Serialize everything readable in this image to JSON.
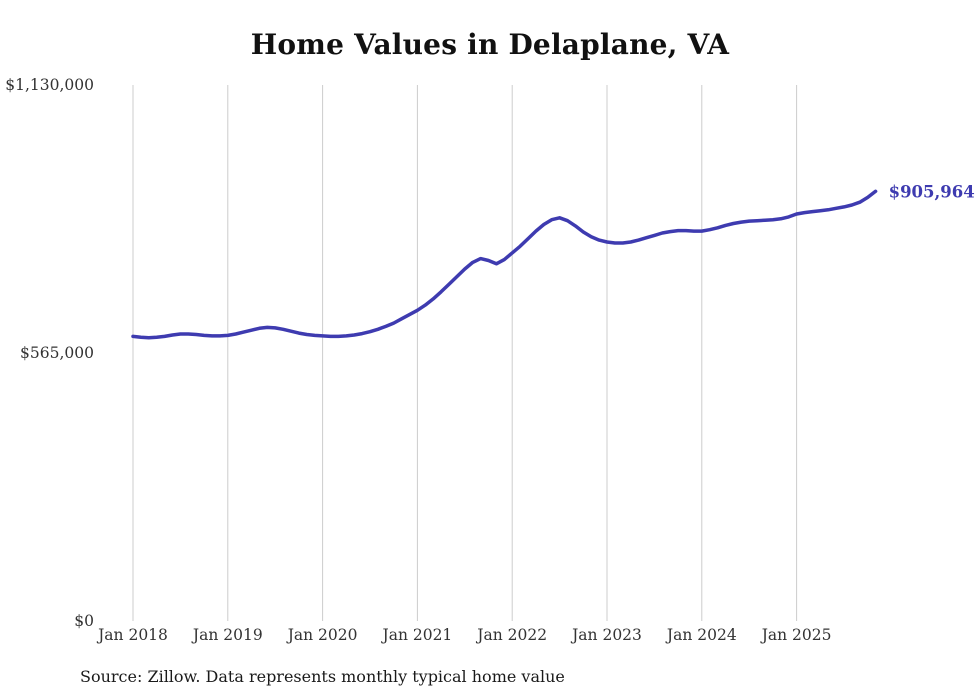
{
  "page": {
    "source_note": "Source: Zillow. Data represents monthly typical home value"
  },
  "chart_data": {
    "type": "line",
    "title": "Home Values in Delaplane, VA",
    "xlabel": "",
    "ylabel": "",
    "ylim": [
      0,
      1130000
    ],
    "grid": "vertical",
    "grid_color": "#cccccc",
    "end_label": "$905,964",
    "end_value": 905964,
    "yticks": [
      {
        "value": 0,
        "label": "$0"
      },
      {
        "value": 565000,
        "label": "$565,000"
      },
      {
        "value": 1130000,
        "label": "$1,130,000"
      }
    ],
    "xticks": [
      {
        "value": 2018,
        "label": "Jan 2018"
      },
      {
        "value": 2019,
        "label": "Jan 2019"
      },
      {
        "value": 2020,
        "label": "Jan 2020"
      },
      {
        "value": 2021,
        "label": "Jan 2021"
      },
      {
        "value": 2022,
        "label": "Jan 2022"
      },
      {
        "value": 2023,
        "label": "Jan 2023"
      },
      {
        "value": 2024,
        "label": "Jan 2024"
      },
      {
        "value": 2025,
        "label": "Jan 2025"
      }
    ],
    "series": [
      {
        "name": "Monthly typical home value",
        "color": "#3e3bb0",
        "points": [
          [
            "2018-01",
            600000
          ],
          [
            "2018-02",
            598000
          ],
          [
            "2018-03",
            597000
          ],
          [
            "2018-04",
            598000
          ],
          [
            "2018-05",
            600000
          ],
          [
            "2018-06",
            603000
          ],
          [
            "2018-07",
            605000
          ],
          [
            "2018-08",
            605000
          ],
          [
            "2018-09",
            604000
          ],
          [
            "2018-10",
            602000
          ],
          [
            "2018-11",
            601000
          ],
          [
            "2018-12",
            601000
          ],
          [
            "2019-01",
            602000
          ],
          [
            "2019-02",
            605000
          ],
          [
            "2019-03",
            609000
          ],
          [
            "2019-04",
            613000
          ],
          [
            "2019-05",
            617000
          ],
          [
            "2019-06",
            619000
          ],
          [
            "2019-07",
            618000
          ],
          [
            "2019-08",
            615000
          ],
          [
            "2019-09",
            611000
          ],
          [
            "2019-10",
            607000
          ],
          [
            "2019-11",
            604000
          ],
          [
            "2019-12",
            602000
          ],
          [
            "2020-01",
            601000
          ],
          [
            "2020-02",
            600000
          ],
          [
            "2020-03",
            600000
          ],
          [
            "2020-04",
            601000
          ],
          [
            "2020-05",
            603000
          ],
          [
            "2020-06",
            606000
          ],
          [
            "2020-07",
            610000
          ],
          [
            "2020-08",
            615000
          ],
          [
            "2020-09",
            621000
          ],
          [
            "2020-10",
            628000
          ],
          [
            "2020-11",
            637000
          ],
          [
            "2020-12",
            646000
          ],
          [
            "2021-01",
            655000
          ],
          [
            "2021-02",
            666000
          ],
          [
            "2021-03",
            679000
          ],
          [
            "2021-04",
            694000
          ],
          [
            "2021-05",
            710000
          ],
          [
            "2021-06",
            726000
          ],
          [
            "2021-07",
            742000
          ],
          [
            "2021-08",
            756000
          ],
          [
            "2021-09",
            764000
          ],
          [
            "2021-10",
            760000
          ],
          [
            "2021-11",
            753000
          ],
          [
            "2021-12",
            762000
          ],
          [
            "2022-01",
            776000
          ],
          [
            "2022-02",
            790000
          ],
          [
            "2022-03",
            806000
          ],
          [
            "2022-04",
            822000
          ],
          [
            "2022-05",
            836000
          ],
          [
            "2022-06",
            846000
          ],
          [
            "2022-07",
            850000
          ],
          [
            "2022-08",
            844000
          ],
          [
            "2022-09",
            833000
          ],
          [
            "2022-10",
            820000
          ],
          [
            "2022-11",
            810000
          ],
          [
            "2022-12",
            803000
          ],
          [
            "2023-01",
            799000
          ],
          [
            "2023-02",
            797000
          ],
          [
            "2023-03",
            797000
          ],
          [
            "2023-04",
            799000
          ],
          [
            "2023-05",
            803000
          ],
          [
            "2023-06",
            808000
          ],
          [
            "2023-07",
            813000
          ],
          [
            "2023-08",
            818000
          ],
          [
            "2023-09",
            821000
          ],
          [
            "2023-10",
            823000
          ],
          [
            "2023-11",
            823000
          ],
          [
            "2023-12",
            822000
          ],
          [
            "2024-01",
            822000
          ],
          [
            "2024-02",
            825000
          ],
          [
            "2024-03",
            829000
          ],
          [
            "2024-04",
            834000
          ],
          [
            "2024-05",
            838000
          ],
          [
            "2024-06",
            841000
          ],
          [
            "2024-07",
            843000
          ],
          [
            "2024-08",
            844000
          ],
          [
            "2024-09",
            845000
          ],
          [
            "2024-10",
            846000
          ],
          [
            "2024-11",
            848000
          ],
          [
            "2024-12",
            852000
          ],
          [
            "2025-01",
            858000
          ],
          [
            "2025-02",
            861000
          ],
          [
            "2025-03",
            863000
          ],
          [
            "2025-04",
            865000
          ],
          [
            "2025-05",
            867000
          ],
          [
            "2025-06",
            870000
          ],
          [
            "2025-07",
            873000
          ],
          [
            "2025-08",
            877000
          ],
          [
            "2025-09",
            883000
          ],
          [
            "2025-10",
            893000
          ],
          [
            "2025-11",
            905964
          ]
        ]
      }
    ]
  }
}
